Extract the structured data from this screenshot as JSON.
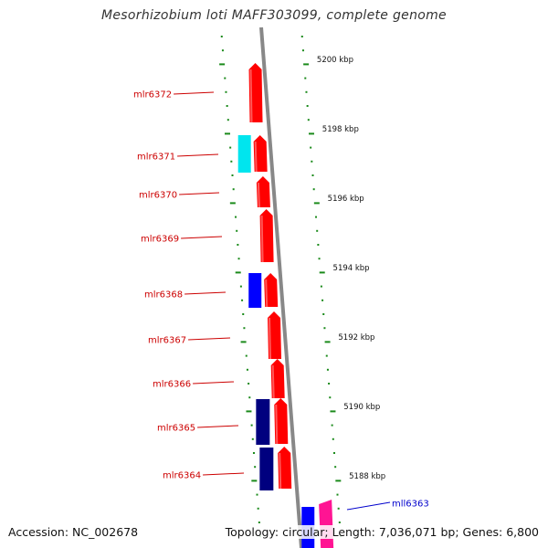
{
  "title": "Mesorhizobium loti MAFF303099, complete genome",
  "accession": "Accession: NC_002678",
  "summary": "Topology: circular; Length: 7,036,071 bp; Genes: 6,800",
  "colors": {
    "backbone": "#888888",
    "tick": "#1a8a1a",
    "plus_gene": "#ff0000",
    "label_plus": "#cc0000",
    "label_minus": "#0000cc"
  },
  "position_labels": [
    "5200 kbp",
    "5198 kbp",
    "5196 kbp",
    "5194 kbp",
    "5192 kbp",
    "5190 kbp",
    "5188 kbp"
  ],
  "genes": [
    {
      "label": "mlr6372",
      "strand": "plus"
    },
    {
      "label": "mlr6371",
      "strand": "plus"
    },
    {
      "label": "mlr6370",
      "strand": "plus"
    },
    {
      "label": "mlr6369",
      "strand": "plus"
    },
    {
      "label": "mlr6368",
      "strand": "plus"
    },
    {
      "label": "mlr6367",
      "strand": "plus"
    },
    {
      "label": "mlr6366",
      "strand": "plus"
    },
    {
      "label": "mlr6365",
      "strand": "plus"
    },
    {
      "label": "mlr6364",
      "strand": "plus"
    },
    {
      "label": "mll6363",
      "strand": "minus"
    }
  ],
  "blocks": [
    {
      "color": "#00e5ee"
    },
    {
      "color": "#0000ff"
    },
    {
      "color": "#00007f"
    },
    {
      "color": "#00007f"
    },
    {
      "color": "#0000ff"
    },
    {
      "color": "#ff1493"
    }
  ]
}
